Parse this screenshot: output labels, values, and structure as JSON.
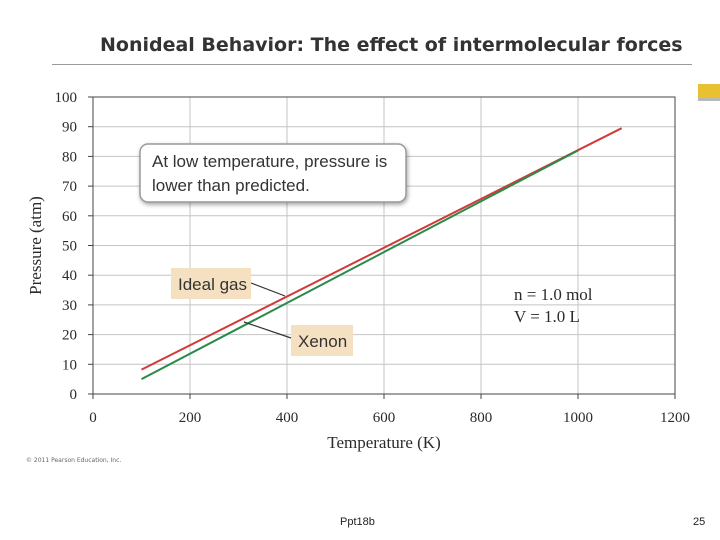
{
  "slide": {
    "title": "Nonideal Behavior: The effect of intermolecular forces",
    "copyright": "© 2011 Pearson Education, Inc.",
    "footer_center": "Ppt18b",
    "page_number": "25"
  },
  "colors": {
    "ideal_line": "#d23a3a",
    "xenon_line": "#2a8a4a",
    "grid": "#c4c4c4",
    "axis": "#444444",
    "label_box": "#f5e1c2",
    "callout_fill": "#ffffff",
    "callout_border": "#9a9a9a",
    "accent": "#e8c030"
  },
  "chart_data": {
    "type": "line",
    "xlabel": "Temperature (K)",
    "ylabel": "Pressure (atm)",
    "xlim": [
      0,
      1200
    ],
    "ylim": [
      0,
      100
    ],
    "xticks": [
      0,
      200,
      400,
      600,
      800,
      1000,
      1200
    ],
    "yticks": [
      0,
      10,
      20,
      30,
      40,
      50,
      60,
      70,
      80,
      90,
      100
    ],
    "grid": true,
    "series": [
      {
        "name": "Ideal gas",
        "x": [
          100,
          1090
        ],
        "y": [
          8.2,
          89.5
        ]
      },
      {
        "name": "Xenon",
        "x": [
          100,
          1000
        ],
        "y": [
          5,
          82
        ]
      }
    ],
    "annotations": {
      "callout": "At low temperature, pressure is lower than predicted.",
      "callout_lines": [
        "At low temperature, pressure is",
        "lower than predicted."
      ],
      "ideal_label": "Ideal gas",
      "xenon_label": "Xenon",
      "conditions": [
        "n = 1.0 mol",
        "V = 1.0 L"
      ]
    }
  }
}
